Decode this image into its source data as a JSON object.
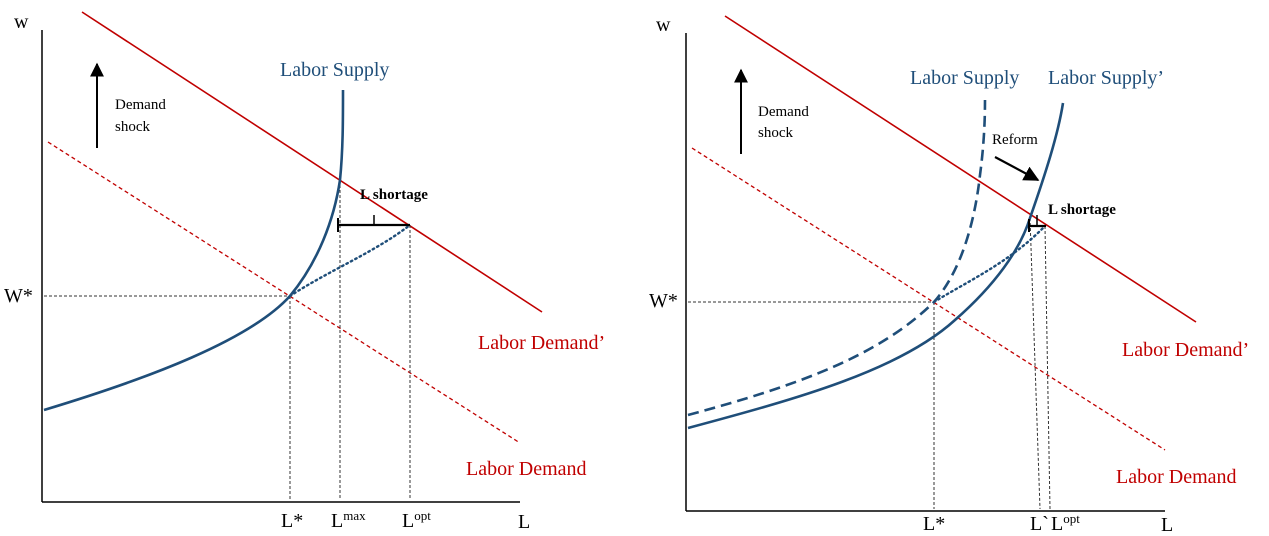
{
  "colors": {
    "supply": "#1f4e79",
    "demand": "#c00000",
    "axis": "#000000",
    "guide": "#333333"
  },
  "left_panel": {
    "y_axis_label": "w",
    "x_axis_label": "L",
    "wstar_label": "W*",
    "supply_label": "Labor Supply",
    "demand_shifted_label": "Labor Demand’",
    "demand_label": "Labor Demand",
    "shock_line1": "Demand",
    "shock_line2": "shock",
    "shortage_label": "L shortage",
    "x_ticks": {
      "lstar": "L*",
      "lmax_base": "L",
      "lmax_sup": "max",
      "lopt_base": "L",
      "lopt_sup": "opt"
    }
  },
  "right_panel": {
    "y_axis_label": "w",
    "x_axis_label": "L",
    "wstar_label": "W*",
    "supply_label": "Labor Supply",
    "supply_shifted_label": "Labor Supply’",
    "demand_shifted_label": "Labor Demand’",
    "demand_label": "Labor Demand",
    "shock_line1": "Demand",
    "shock_line2": "shock",
    "reform_label": "Reform",
    "shortage_label": "L shortage",
    "x_ticks": {
      "lstar": "L*",
      "lprime": "L`",
      "lopt_base": "L",
      "lopt_sup": "opt"
    }
  }
}
